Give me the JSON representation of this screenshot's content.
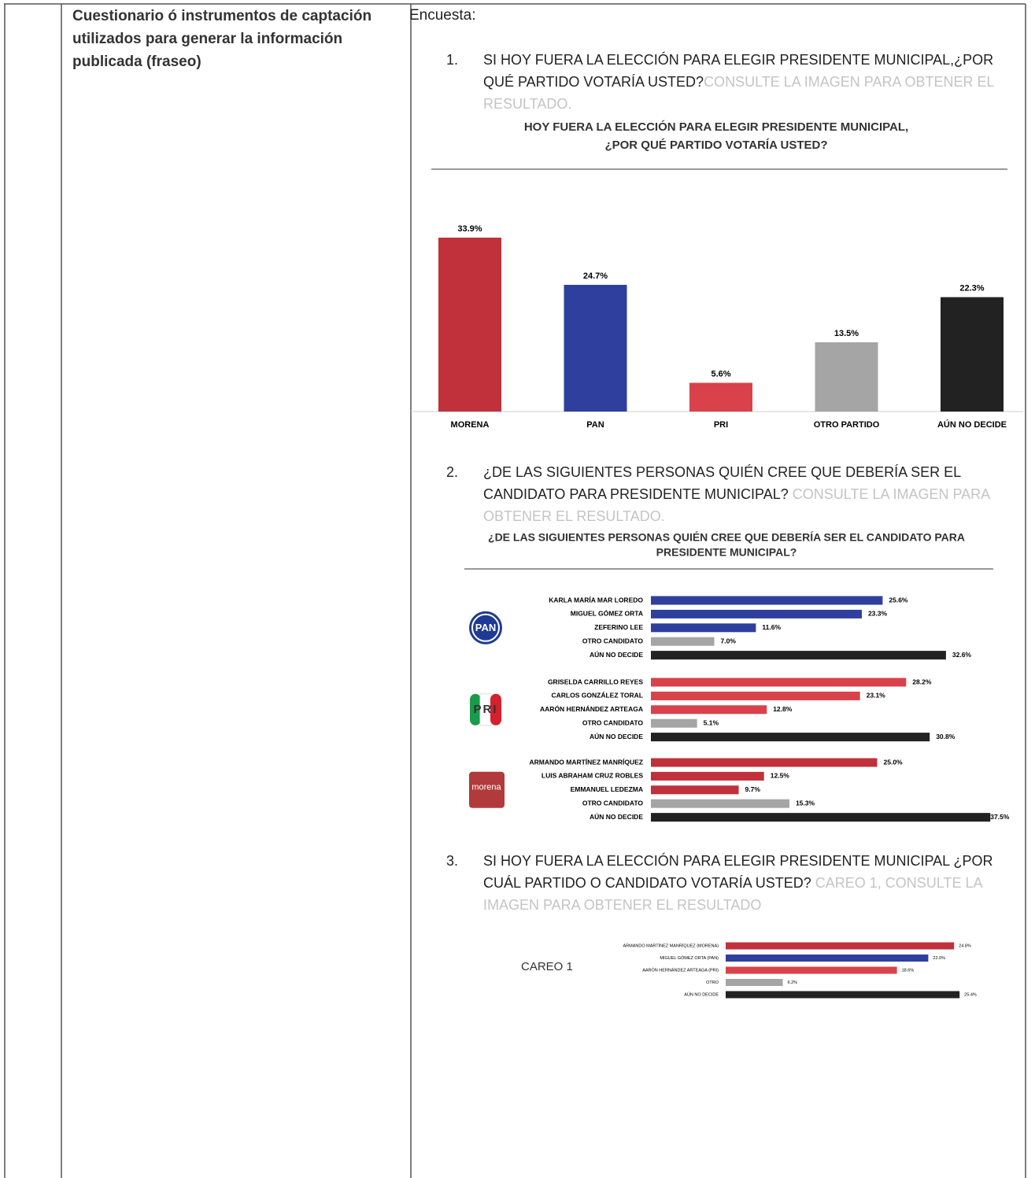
{
  "table": {
    "label": "Cuestionario ó instrumentos de captación utilizados para generar la información publicada (fraseo)",
    "intro": "Encuesta:"
  },
  "questions": [
    {
      "number": "1.",
      "text": "SI HOY FUERA LA ELECCIÓN PARA ELEGIR PRESIDENTE MUNICIPAL,¿POR QUÉ PARTIDO VOTARÍA USTED?",
      "note": "CONSULTE LA IMAGEN PARA OBTENER EL RESULTADO."
    },
    {
      "number": "2.",
      "text": "¿DE LAS SIGUIENTES PERSONAS QUIÉN CREE QUE DEBERÍA SER EL CANDIDATO PARA PRESIDENTE MUNICIPAL?",
      "note": "CONSULTE LA IMAGEN PARA OBTENER EL RESULTADO."
    },
    {
      "number": "3.",
      "text": "SI HOY FUERA LA ELECCIÓN PARA ELEGIR PRESIDENTE MUNICIPAL ¿POR CUÁL PARTIDO O CANDIDATO VOTARÍA USTED?",
      "note": "CAREO 1, CONSULTE LA IMAGEN PARA OBTENER EL RESULTADO"
    }
  ],
  "chart_data": [
    {
      "type": "bar",
      "title": [
        "HOY FUERA LA ELECCIÓN PARA ELEGIR PRESIDENTE MUNICIPAL,",
        "¿POR QUÉ PARTIDO VOTARÍA USTED?"
      ],
      "categories": [
        "MORENA",
        "PAN",
        "PRI",
        "OTRO PARTIDO",
        "AÚN NO DECIDE"
      ],
      "values": [
        33.9,
        24.7,
        5.6,
        13.5,
        22.3
      ],
      "value_labels": [
        "33.9%",
        "24.7%",
        "5.6%",
        "13.5%",
        "22.3%"
      ],
      "colors": [
        "#c0313c",
        "#2f3f9e",
        "#d9424a",
        "#a5a5a5",
        "#222222"
      ]
    },
    {
      "type": "hbar-groups",
      "title": [
        "¿DE LAS SIGUIENTES PERSONAS QUIÉN CREE QUE DEBERÍA SER EL CANDIDATO PARA",
        "PRESIDENTE MUNICIPAL?"
      ],
      "groups": [
        {
          "logo": "PAN",
          "categories": [
            "KARLA MARÍA MAR LOREDO",
            "MIGUEL GÓMEZ ORTA",
            "ZEFERINO LEE",
            "OTRO CANDIDATO",
            "AÚN NO DECIDE"
          ],
          "values": [
            25.6,
            23.3,
            11.6,
            7.0,
            32.6
          ],
          "value_labels": [
            "25.6%",
            "23.3%",
            "11.6%",
            "7.0%",
            "32.6%"
          ],
          "colors": [
            "#2f3f9e",
            "#2f3f9e",
            "#2f3f9e",
            "#a5a5a5",
            "#222222"
          ]
        },
        {
          "logo": "PRI",
          "categories": [
            "GRISELDA CARRILLO REYES",
            "CARLOS GONZÁLEZ TORAL",
            "AARÓN HERNÁNDEZ ARTEAGA",
            "OTRO CANDIDATO",
            "AÚN NO DECIDE"
          ],
          "values": [
            28.2,
            23.1,
            12.8,
            5.1,
            30.8
          ],
          "value_labels": [
            "28.2%",
            "23.1%",
            "12.8%",
            "5.1%",
            "30.8%"
          ],
          "colors": [
            "#d9424a",
            "#d9424a",
            "#d9424a",
            "#a5a5a5",
            "#222222"
          ]
        },
        {
          "logo": "morena",
          "categories": [
            "ARMANDO MARTÍNEZ MANRÍQUEZ",
            "LUIS ABRAHAM CRUZ ROBLES",
            "EMMANUEL LEDEZMA",
            "OTRO CANDIDATO",
            "AÚN NO DECIDE"
          ],
          "values": [
            25.0,
            12.5,
            9.7,
            15.3,
            37.5
          ],
          "value_labels": [
            "25.0%",
            "12.5%",
            "9.7%",
            "15.3%",
            "37.5%"
          ],
          "colors": [
            "#c0313c",
            "#c0313c",
            "#c0313c",
            "#a5a5a5",
            "#222222"
          ]
        }
      ]
    },
    {
      "type": "hbar",
      "label": "CAREO 1",
      "categories": [
        "ARMANDO MARTÍNEZ MANRÍQUEZ (MORENA)",
        "MIGUEL GÓMEZ ORTA (PAN)",
        "AARÓN HERNÁNDEZ ARTEAGA (PRI)",
        "OTRO",
        "AÚN NO DECIDE"
      ],
      "values": [
        24.8,
        22.0,
        18.6,
        6.2,
        25.4
      ],
      "value_labels": [
        "24.8%",
        "22.0%",
        "18.6%",
        "6.2%",
        "25.4%"
      ],
      "colors": [
        "#c0313c",
        "#2f3f9e",
        "#d9424a",
        "#a5a5a5",
        "#222222"
      ]
    }
  ]
}
